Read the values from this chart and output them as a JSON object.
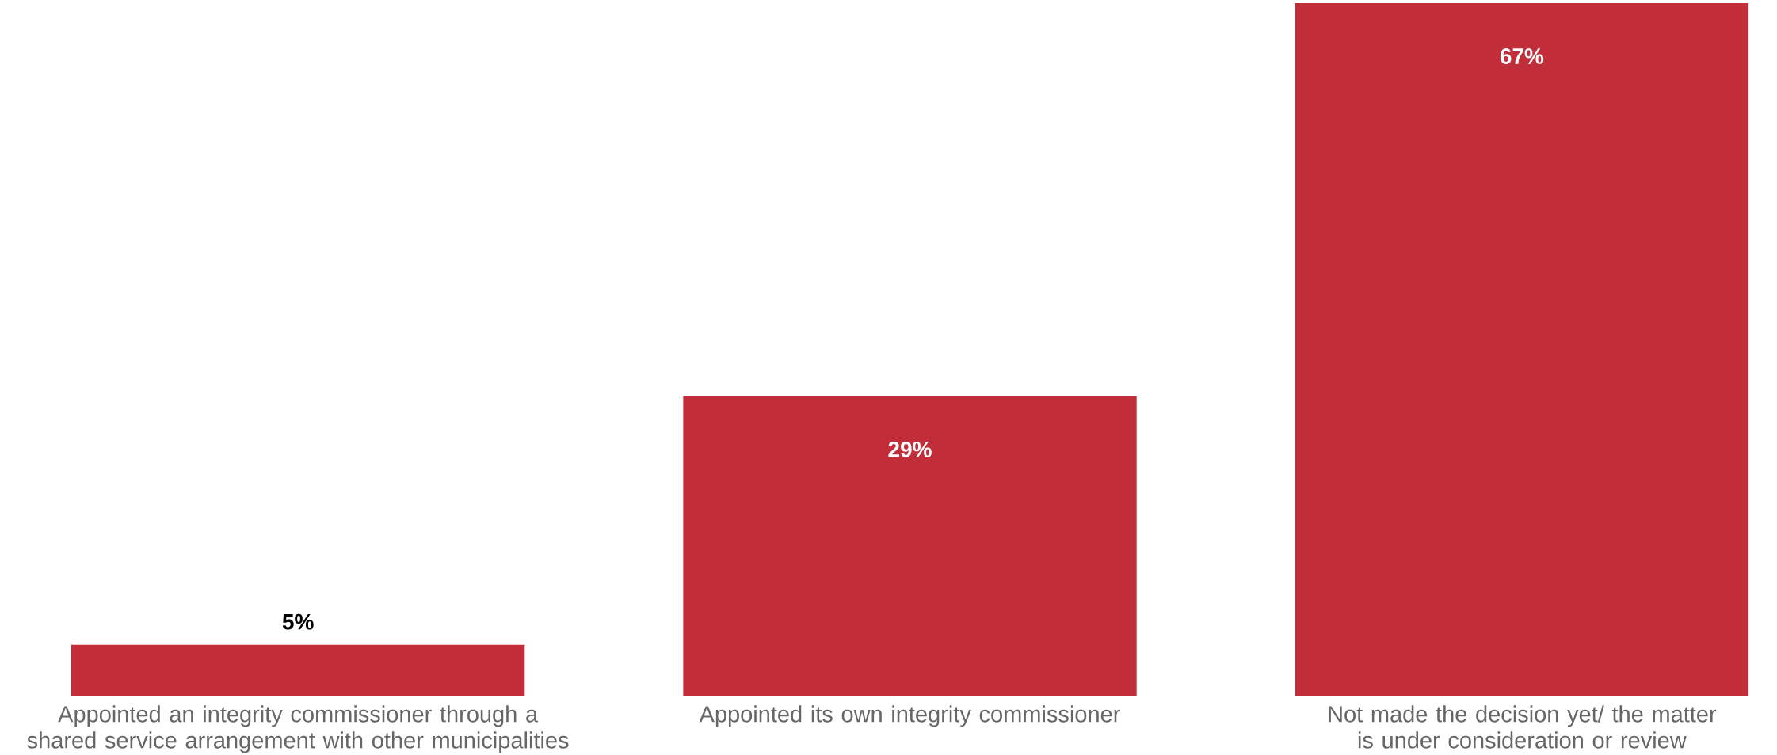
{
  "chart_data": {
    "type": "bar",
    "categories": [
      "Appointed an integrity commissioner through a shared service arrangement with other municipalities",
      "Appointed its own integrity commissioner",
      "Not made the decision yet/ the matter is under consideration or review"
    ],
    "values": [
      5,
      29,
      67
    ],
    "value_labels": [
      "5%",
      "29%",
      "67%"
    ],
    "color": "#c12d39"
  }
}
